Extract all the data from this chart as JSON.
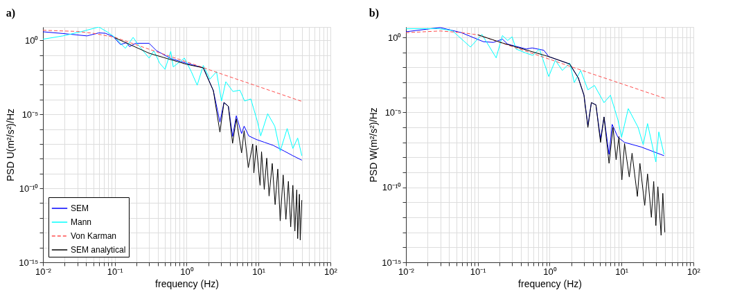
{
  "chart_data": [
    {
      "type": "line",
      "title": "a)",
      "xlabel": "frequency (Hz)",
      "ylabel": "PSD U(m²/s²)/Hz",
      "log": "xy",
      "grid": true,
      "legend": "bottom left",
      "xlim": [
        0.01,
        100
      ],
      "ylim": [
        1e-15,
        8
      ],
      "xticks": [
        {
          "value": 0.01,
          "label": "10⁻²"
        },
        {
          "value": 0.02,
          "label": null
        },
        {
          "value": 0.03,
          "label": null
        },
        {
          "value": 0.04,
          "label": null
        },
        {
          "value": 0.05,
          "label": null
        },
        {
          "value": 0.06,
          "label": null
        },
        {
          "value": 0.07,
          "label": null
        },
        {
          "value": 0.08,
          "label": null
        },
        {
          "value": 0.09,
          "label": null
        },
        {
          "value": 0.1,
          "label": "10⁻¹"
        },
        {
          "value": 0.2,
          "label": null
        },
        {
          "value": 0.3,
          "label": null
        },
        {
          "value": 0.4,
          "label": null
        },
        {
          "value": 0.5,
          "label": null
        },
        {
          "value": 0.6,
          "label": null
        },
        {
          "value": 0.7,
          "label": null
        },
        {
          "value": 0.8,
          "label": null
        },
        {
          "value": 0.9,
          "label": null
        },
        {
          "value": 1,
          "label": "10⁰"
        },
        {
          "value": 2,
          "label": null
        },
        {
          "value": 3,
          "label": null
        },
        {
          "value": 4,
          "label": null
        },
        {
          "value": 5,
          "label": null
        },
        {
          "value": 6,
          "label": null
        },
        {
          "value": 7,
          "label": null
        },
        {
          "value": 8,
          "label": null
        },
        {
          "value": 9,
          "label": null
        },
        {
          "value": 10,
          "label": "10¹"
        },
        {
          "value": 20,
          "label": null
        },
        {
          "value": 30,
          "label": null
        },
        {
          "value": 40,
          "label": null
        },
        {
          "value": 50,
          "label": null
        },
        {
          "value": 60,
          "label": null
        },
        {
          "value": 70,
          "label": null
        },
        {
          "value": 80,
          "label": null
        },
        {
          "value": 90,
          "label": null
        },
        {
          "value": 100,
          "label": "10²"
        }
      ],
      "yticks": [
        {
          "value": 1e-15,
          "label": "10⁻¹⁵"
        },
        {
          "value": 1e-14,
          "label": null
        },
        {
          "value": 1e-13,
          "label": null
        },
        {
          "value": 1e-12,
          "label": null
        },
        {
          "value": 1e-11,
          "label": null
        },
        {
          "value": 1e-10,
          "label": "10⁻¹⁰"
        },
        {
          "value": 1e-09,
          "label": null
        },
        {
          "value": 1e-08,
          "label": null
        },
        {
          "value": 1e-07,
          "label": null
        },
        {
          "value": 1e-06,
          "label": null
        },
        {
          "value": 1e-05,
          "label": "10⁻⁵"
        },
        {
          "value": 0.0001,
          "label": null
        },
        {
          "value": 0.001,
          "label": null
        },
        {
          "value": 0.01,
          "label": null
        },
        {
          "value": 0.1,
          "label": null
        },
        {
          "value": 1,
          "label": "10⁰"
        }
      ],
      "series": [
        {
          "name": "SEM",
          "type": "line",
          "color": "#0000ff",
          "line_style": "solid",
          "x": [
            0.01,
            0.019,
            0.041,
            0.06,
            0.074,
            0.095,
            0.12,
            0.145,
            0.16,
            0.195,
            0.3,
            0.38,
            0.6,
            1,
            1.7,
            2.35,
            2.9,
            3.3,
            3.8,
            4.35,
            4.9,
            5.8,
            6.3,
            7.3,
            9.3,
            12,
            16,
            23,
            30,
            40
          ],
          "values": [
            3.8,
            2.9,
            2,
            3.2,
            3,
            1.8,
            0.52,
            0.7,
            0.38,
            0.63,
            0.63,
            0.2,
            0.06,
            0.028,
            0.014,
            0.0004,
            3e-06,
            6.3e-05,
            3.5e-05,
            3.2e-07,
            8e-06,
            5e-07,
            1.6e-06,
            3.5e-07,
            2e-07,
            1.3e-07,
            8e-08,
            3.2e-08,
            1.6e-08,
            8e-09
          ]
        },
        {
          "name": "Mann",
          "type": "line",
          "color": "#00ffff",
          "line_style": "solid",
          "x": [
            0.01,
            0.019,
            0.035,
            0.06,
            0.08,
            0.1,
            0.14,
            0.18,
            0.21,
            0.3,
            0.35,
            0.42,
            0.5,
            0.6,
            0.65,
            0.93,
            1.16,
            1.4,
            1.7,
            2.1,
            2.6,
            3.05,
            3.5,
            4.4,
            5.5,
            6.4,
            7.8,
            9.6,
            10.7,
            13.4,
            16.8,
            20,
            25,
            30,
            35,
            40
          ],
          "values": [
            1.2,
            2,
            4,
            8,
            3.5,
            1.6,
            0.29,
            1.6,
            0.52,
            0.063,
            0.2,
            0.029,
            0.011,
            0.18,
            0.016,
            0.063,
            0.0076,
            0.00093,
            0.02,
            0.0024,
            0.0076,
            7.9e-05,
            0.0016,
            0.00035,
            0.00043,
            7.9e-05,
            0.00011,
            3.5e-06,
            3.5e-07,
            1.1e-05,
            1.6e-06,
            3.2e-08,
            1.1e-06,
            5e-08,
            2.5e-07,
            1.6e-08
          ]
        },
        {
          "name": "Von Karman",
          "type": "line",
          "color": "#ff4d4d",
          "line_style": "dashed",
          "x": [
            0.01,
            0.03,
            0.05,
            0.1,
            0.3,
            1,
            3,
            10,
            40
          ],
          "values": [
            4.8,
            4,
            3,
            1.6,
            0.25,
            0.035,
            0.0055,
            0.00075,
            7.5e-05
          ]
        },
        {
          "name": "SEM analytical",
          "type": "line",
          "color": "#000000",
          "line_style": "solid",
          "x": [
            0.1,
            0.3,
            1,
            1.7,
            2.35,
            2.9,
            3.3,
            3.8,
            4.35,
            4.9,
            5.8,
            6.3,
            7.2,
            8.3,
            8.6,
            9.3,
            10.5,
            11,
            12,
            13,
            14,
            15.5,
            17,
            18.5,
            20,
            22,
            24,
            26,
            28,
            30,
            32,
            34,
            35,
            37,
            38,
            40
          ],
          "values": [
            1.5,
            0.135,
            0.024,
            0.014,
            0.0004,
            6.3e-07,
            6.3e-05,
            3.5e-05,
            1.1e-07,
            5e-06,
            2.5e-08,
            7.9e-07,
            2.5e-09,
            1e-07,
            1.1e-09,
            7.9e-08,
            1.6e-10,
            3e-08,
            8.5e-11,
            1.1e-08,
            3e-11,
            4.8e-09,
            8e-12,
            2e-09,
            6.3e-13,
            8e-10,
            8e-13,
            3e-10,
            2.5e-13,
            1.6e-10,
            1.3e-13,
            8e-11,
            4e-14,
            4e-11,
            3.2e-14,
            1.6e-11
          ]
        }
      ]
    },
    {
      "type": "line",
      "title": "b)",
      "xlabel": "frequency (Hz)",
      "ylabel": "PSD W(m²/s²)/Hz",
      "log": "xy",
      "grid": true,
      "legend": "bottom left",
      "xlim": [
        0.01,
        100
      ],
      "ylim": [
        1e-15,
        5
      ],
      "xticks": [
        {
          "value": 0.01,
          "label": "10⁻²"
        },
        {
          "value": 0.02,
          "label": null
        },
        {
          "value": 0.03,
          "label": null
        },
        {
          "value": 0.04,
          "label": null
        },
        {
          "value": 0.05,
          "label": null
        },
        {
          "value": 0.06,
          "label": null
        },
        {
          "value": 0.07,
          "label": null
        },
        {
          "value": 0.08,
          "label": null
        },
        {
          "value": 0.09,
          "label": null
        },
        {
          "value": 0.1,
          "label": "10⁻¹"
        },
        {
          "value": 0.2,
          "label": null
        },
        {
          "value": 0.3,
          "label": null
        },
        {
          "value": 0.4,
          "label": null
        },
        {
          "value": 0.5,
          "label": null
        },
        {
          "value": 0.6,
          "label": null
        },
        {
          "value": 0.7,
          "label": null
        },
        {
          "value": 0.8,
          "label": null
        },
        {
          "value": 0.9,
          "label": null
        },
        {
          "value": 1,
          "label": "10⁰"
        },
        {
          "value": 2,
          "label": null
        },
        {
          "value": 3,
          "label": null
        },
        {
          "value": 4,
          "label": null
        },
        {
          "value": 5,
          "label": null
        },
        {
          "value": 6,
          "label": null
        },
        {
          "value": 7,
          "label": null
        },
        {
          "value": 8,
          "label": null
        },
        {
          "value": 9,
          "label": null
        },
        {
          "value": 10,
          "label": "10¹"
        },
        {
          "value": 20,
          "label": null
        },
        {
          "value": 30,
          "label": null
        },
        {
          "value": 40,
          "label": null
        },
        {
          "value": 50,
          "label": null
        },
        {
          "value": 60,
          "label": null
        },
        {
          "value": 70,
          "label": null
        },
        {
          "value": 80,
          "label": null
        },
        {
          "value": 90,
          "label": null
        },
        {
          "value": 100,
          "label": "10²"
        }
      ],
      "yticks": [
        {
          "value": 1e-15,
          "label": "10⁻¹⁵"
        },
        {
          "value": 1e-14,
          "label": null
        },
        {
          "value": 1e-13,
          "label": null
        },
        {
          "value": 1e-12,
          "label": null
        },
        {
          "value": 1e-11,
          "label": null
        },
        {
          "value": 1e-10,
          "label": "10⁻¹⁰"
        },
        {
          "value": 1e-09,
          "label": null
        },
        {
          "value": 1e-08,
          "label": null
        },
        {
          "value": 1e-07,
          "label": null
        },
        {
          "value": 1e-06,
          "label": null
        },
        {
          "value": 1e-05,
          "label": "10⁻⁵"
        },
        {
          "value": 0.0001,
          "label": null
        },
        {
          "value": 0.001,
          "label": null
        },
        {
          "value": 0.01,
          "label": null
        },
        {
          "value": 0.1,
          "label": null
        },
        {
          "value": 1,
          "label": "10⁰"
        }
      ],
      "series": [
        {
          "name": "SEM",
          "type": "line",
          "color": "#0000ff",
          "line_style": "solid",
          "x": [
            0.01,
            0.03,
            0.059,
            0.12,
            0.165,
            0.22,
            0.26,
            0.47,
            0.57,
            0.83,
            0.97,
            1.9,
            2.5,
            3,
            3.4,
            3.8,
            4.4,
            5.1,
            5.7,
            6.7,
            7.4,
            8.9,
            11,
            18.6,
            39
          ],
          "values": [
            2.4,
            4.6,
            2.1,
            0.52,
            0.47,
            0.77,
            0.36,
            0.17,
            0.2,
            0.14,
            0.053,
            0.017,
            0.002,
            0.00014,
            1.3e-06,
            4.5e-05,
            3.2e-05,
            1.6e-07,
            5e-06,
            1.6e-08,
            1.6e-06,
            2.2e-07,
            1e-07,
            5e-08,
            1.3e-08
          ]
        },
        {
          "name": "Mann",
          "type": "line",
          "color": "#00ffff",
          "line_style": "solid",
          "x": [
            0.01,
            0.028,
            0.044,
            0.079,
            0.114,
            0.18,
            0.22,
            0.26,
            0.3,
            0.34,
            0.46,
            0.58,
            0.72,
            0.97,
            1.2,
            1.5,
            1.9,
            2.2,
            2.7,
            3.4,
            4.2,
            5.7,
            7,
            8.9,
            10,
            12.4,
            17,
            20,
            23,
            30,
            33,
            39
          ],
          "values": [
            3.8,
            3.9,
            2.9,
            0.23,
            1.6,
            0.044,
            1.35,
            0.63,
            1.1,
            0.17,
            0.094,
            0.064,
            0.17,
            0.0025,
            0.03,
            0.0063,
            0.02,
            0.001,
            0.0063,
            0.00032,
            0.00063,
            4.5e-05,
            0.00014,
            3.2e-06,
            2.2e-07,
            1.8e-05,
            1e-06,
            7e-08,
            1.8e-06,
            5e-09,
            5e-07,
            1.6e-08
          ]
        },
        {
          "name": "Von Karman",
          "type": "line",
          "color": "#ff4d4d",
          "line_style": "dashed",
          "x": [
            0.01,
            0.03,
            0.06,
            0.1,
            0.3,
            1,
            3,
            10,
            40
          ],
          "values": [
            2.1,
            2.7,
            2.1,
            1.5,
            0.25,
            0.035,
            0.0057,
            0.00082,
            8.7e-05
          ]
        },
        {
          "name": "SEM analytical",
          "type": "line",
          "color": "#000000",
          "line_style": "solid",
          "x": [
            0.1,
            0.22,
            0.97,
            1.9,
            2.5,
            3,
            3.4,
            3.8,
            4.4,
            5.1,
            5.7,
            6.7,
            7.6,
            8.4,
            9.2,
            10.1,
            11,
            12.8,
            14,
            16.6,
            18,
            21,
            23,
            26,
            28,
            30,
            32,
            35.5,
            37.5,
            40
          ],
          "values": [
            1.5,
            0.43,
            0.053,
            0.017,
            0.002,
            0.00014,
            1e-06,
            4.5e-05,
            3.2e-05,
            1e-07,
            5e-06,
            4e-09,
            1e-06,
            7e-09,
            2.5e-07,
            3.2e-10,
            8.3e-08,
            5e-10,
            1.9e-08,
            2.5e-11,
            4e-09,
            6.3e-12,
            7.9e-10,
            1e-12,
            2.5e-10,
            2.8e-13,
            1.1e-10,
            6.3e-14,
            4e-11,
            1e-13
          ]
        }
      ]
    }
  ]
}
